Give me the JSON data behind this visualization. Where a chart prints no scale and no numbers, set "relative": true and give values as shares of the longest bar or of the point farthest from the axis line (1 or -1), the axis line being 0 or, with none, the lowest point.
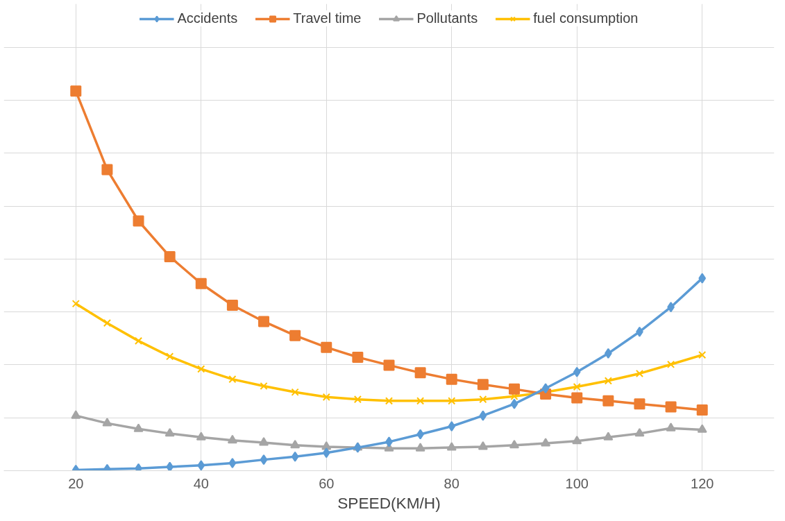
{
  "chart_data": {
    "type": "line",
    "relative": true,
    "xlabel": "SPEED(KM/H)",
    "x": [
      20,
      25,
      30,
      35,
      40,
      45,
      50,
      55,
      60,
      65,
      70,
      75,
      80,
      85,
      90,
      95,
      100,
      105,
      110,
      115,
      120
    ],
    "xlim": [
      8.5,
      131.5
    ],
    "xticks": [
      20,
      40,
      60,
      80,
      100,
      120
    ],
    "grid": true,
    "legend": "top",
    "series": [
      {
        "name": "Accidents",
        "color": "#5b9bd5",
        "marker": "diamond",
        "values": [
          0.002,
          0.004,
          0.006,
          0.01,
          0.014,
          0.02,
          0.029,
          0.037,
          0.047,
          0.061,
          0.076,
          0.096,
          0.117,
          0.145,
          0.176,
          0.217,
          0.26,
          0.309,
          0.366,
          0.431,
          0.507
        ]
      },
      {
        "name": "Travel time",
        "color": "#ed7d31",
        "marker": "square",
        "values": [
          1,
          0.793,
          0.658,
          0.564,
          0.493,
          0.436,
          0.393,
          0.356,
          0.325,
          0.299,
          0.278,
          0.258,
          0.241,
          0.227,
          0.215,
          0.202,
          0.192,
          0.184,
          0.176,
          0.168,
          0.16
        ]
      },
      {
        "name": "Pollutants",
        "color": "#a5a5a5",
        "marker": "triangle",
        "values": [
          0.145,
          0.125,
          0.11,
          0.098,
          0.088,
          0.08,
          0.074,
          0.067,
          0.063,
          0.061,
          0.059,
          0.059,
          0.061,
          0.063,
          0.067,
          0.072,
          0.078,
          0.088,
          0.098,
          0.112,
          0.108
        ]
      },
      {
        "name": "fuel consumption",
        "color": "#ffc000",
        "marker": "cross",
        "values": [
          0.44,
          0.389,
          0.342,
          0.301,
          0.268,
          0.241,
          0.223,
          0.207,
          0.194,
          0.188,
          0.184,
          0.184,
          0.184,
          0.188,
          0.196,
          0.207,
          0.221,
          0.237,
          0.256,
          0.28,
          0.305
        ]
      }
    ]
  }
}
